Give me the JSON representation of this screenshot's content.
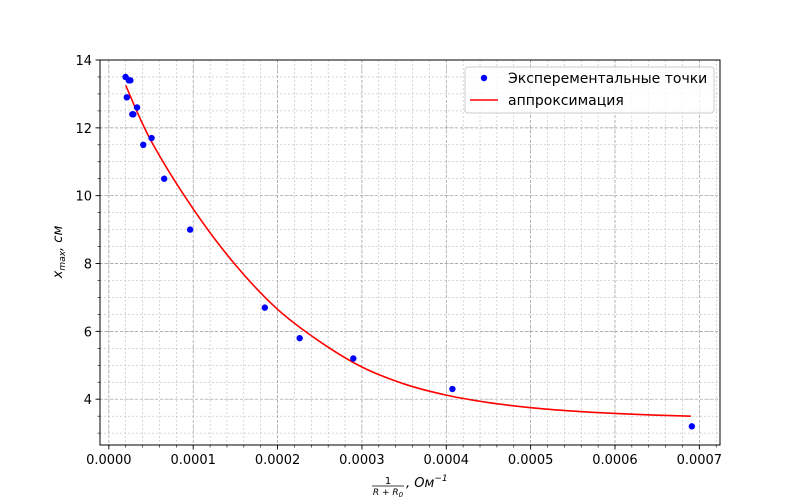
{
  "chart_data": {
    "type": "scatter",
    "title": "",
    "xlabel_parts": {
      "numerator": "1",
      "denominator_base": "R + R",
      "denominator_sub": "0",
      "suffix": ", Ом",
      "suffix_sup": "−1"
    },
    "ylabel_parts": {
      "base": "x",
      "sub": "max",
      "suffix": ", см"
    },
    "xlim": [
      -1.05e-05,
      0.0007245
    ],
    "ylim": [
      2.65,
      14.0
    ],
    "x_ticks": [
      0.0,
      0.0001,
      0.0002,
      0.0003,
      0.0004,
      0.0005,
      0.0006,
      0.0007
    ],
    "x_tick_labels": [
      "0.0000",
      "0.0001",
      "0.0002",
      "0.0003",
      "0.0004",
      "0.0005",
      "0.0006",
      "0.0007"
    ],
    "y_ticks": [
      4,
      6,
      8,
      10,
      12,
      14
    ],
    "y_tick_labels": [
      "4",
      "6",
      "8",
      "10",
      "12",
      "14"
    ],
    "grid": true,
    "minor_grid": true,
    "legend_position": "top-right",
    "series": [
      {
        "name": "Эксперементальные точки",
        "type": "scatter",
        "color": "#0000ff",
        "points": [
          [
            1.98e-05,
            13.5
          ],
          [
            2.13e-05,
            12.9
          ],
          [
            2.37e-05,
            13.4
          ],
          [
            2.55e-05,
            13.4
          ],
          [
            2.78e-05,
            12.4
          ],
          [
            2.9e-05,
            12.4
          ],
          [
            3.34e-05,
            12.6
          ],
          [
            4.08e-05,
            11.5
          ],
          [
            5.06e-05,
            11.7
          ],
          [
            6.56e-05,
            10.5
          ],
          [
            9.63e-05,
            9.0
          ],
          [
            0.0001849,
            6.7
          ],
          [
            0.0002262,
            5.8
          ],
          [
            0.0002898,
            5.2
          ],
          [
            0.0004073,
            4.3
          ],
          [
            0.0006911,
            3.2
          ]
        ]
      },
      {
        "name": "аппроксимация",
        "type": "line",
        "color": "#ff0000",
        "curve": [
          [
            2e-05,
            13.25
          ],
          [
            5e-05,
            11.62
          ],
          [
            0.0001,
            9.61
          ],
          [
            0.00015,
            7.96
          ],
          [
            0.0002,
            6.65
          ],
          [
            0.00025,
            5.7
          ],
          [
            0.0003,
            4.95
          ],
          [
            0.00035,
            4.45
          ],
          [
            0.0004,
            4.12
          ],
          [
            0.00045,
            3.9
          ],
          [
            0.0005,
            3.75
          ],
          [
            0.00055,
            3.65
          ],
          [
            0.0006,
            3.58
          ],
          [
            0.00065,
            3.53
          ],
          [
            0.00069,
            3.5
          ]
        ]
      }
    ]
  }
}
